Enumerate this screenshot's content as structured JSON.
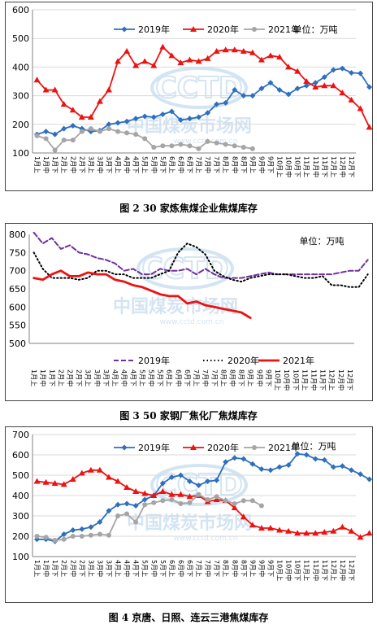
{
  "months": [
    "1月",
    "2月",
    "3月",
    "4月",
    "5月",
    "6月",
    "7月",
    "8月",
    "9月",
    "10月",
    "11月",
    "12月"
  ],
  "parts": [
    "上",
    "中",
    "下"
  ],
  "colors": {
    "blue": "#2e6fbe",
    "red": "#ee1111",
    "gray": "#a5a5a5",
    "purple": "#7030a0",
    "black": "#000000",
    "frame": "#444444"
  },
  "watermark": {
    "logo": "CCTD",
    "cn": "中国煤炭市场网",
    "url": "www.cctd.com.cn"
  },
  "captions": {
    "fig2": "图 2  30 家炼焦煤企业焦煤库存",
    "fig3": "图 3  50 家钢厂焦化厂焦煤库存",
    "fig4": "图 4  京唐、日照、连云三港焦煤库存"
  },
  "chart_data": [
    {
      "type": "line",
      "unit": "单位：万吨",
      "ylim": [
        100,
        600
      ],
      "yticks": [
        100,
        200,
        300,
        400,
        500,
        600
      ],
      "grid": true,
      "legend_position": "top",
      "series": [
        {
          "name": "2019年",
          "color": "#2e6fbe",
          "marker": "diamond",
          "values": [
            165,
            175,
            165,
            185,
            195,
            185,
            175,
            178,
            200,
            205,
            210,
            220,
            228,
            225,
            235,
            245,
            215,
            220,
            225,
            240,
            270,
            275,
            320,
            300,
            300,
            325,
            345,
            320,
            305,
            325,
            335,
            345,
            365,
            390,
            395,
            380,
            378,
            330
          ]
        },
        {
          "name": "2020年",
          "color": "#ee1111",
          "marker": "triangle",
          "values": [
            355,
            320,
            320,
            270,
            250,
            225,
            225,
            280,
            320,
            420,
            455,
            405,
            420,
            405,
            470,
            440,
            415,
            425,
            420,
            430,
            455,
            460,
            460,
            455,
            450,
            425,
            440,
            435,
            400,
            385,
            350,
            330,
            335,
            335,
            310,
            285,
            255,
            190
          ]
        },
        {
          "name": "2021年",
          "color": "#a5a5a5",
          "marker": "circle",
          "values": [
            160,
            150,
            110,
            145,
            145,
            175,
            185,
            175,
            185,
            175,
            170,
            165,
            150,
            120,
            125,
            125,
            130,
            125,
            115,
            140,
            135,
            130,
            125,
            120,
            115
          ]
        }
      ]
    },
    {
      "type": "line",
      "unit": "单位：万吨",
      "ylim": [
        500,
        800
      ],
      "yticks": [
        500,
        550,
        600,
        650,
        700,
        750,
        800
      ],
      "grid": false,
      "legend_position": "bottom",
      "series": [
        {
          "name": "2019年",
          "color": "#7030a0",
          "dash": "dashed",
          "values": [
            805,
            775,
            790,
            760,
            770,
            750,
            745,
            735,
            730,
            720,
            700,
            705,
            690,
            690,
            705,
            700,
            700,
            705,
            690,
            705,
            690,
            680,
            680,
            680,
            685,
            690,
            695,
            690,
            690,
            690,
            690,
            690,
            690,
            690,
            695,
            700,
            700,
            730
          ]
        },
        {
          "name": "2020年",
          "color": "#000000",
          "dash": "dotted",
          "values": [
            750,
            705,
            680,
            680,
            680,
            675,
            680,
            700,
            700,
            690,
            690,
            680,
            680,
            680,
            690,
            700,
            750,
            775,
            765,
            745,
            700,
            685,
            675,
            670,
            680,
            685,
            690,
            690,
            690,
            685,
            680,
            680,
            685,
            660,
            660,
            655,
            655,
            690
          ]
        },
        {
          "name": "2021年",
          "color": "#ee1111",
          "dash": "solid",
          "values": [
            680,
            675,
            690,
            700,
            685,
            685,
            695,
            690,
            690,
            675,
            670,
            660,
            655,
            645,
            635,
            630,
            630,
            610,
            615,
            605,
            600,
            595,
            590,
            585,
            570
          ]
        }
      ]
    },
    {
      "type": "line",
      "unit": "单位：万吨",
      "ylim": [
        100,
        700
      ],
      "yticks": [
        100,
        200,
        300,
        400,
        500,
        600,
        700
      ],
      "grid": true,
      "legend_position": "top",
      "series": [
        {
          "name": "2019年",
          "color": "#2e6fbe",
          "marker": "diamond",
          "values": [
            185,
            185,
            175,
            210,
            230,
            235,
            245,
            270,
            325,
            355,
            360,
            350,
            380,
            400,
            460,
            490,
            500,
            470,
            450,
            470,
            475,
            565,
            585,
            580,
            555,
            530,
            525,
            540,
            550,
            605,
            600,
            580,
            575,
            540,
            545,
            525,
            505,
            480
          ]
        },
        {
          "name": "2020年",
          "color": "#ee1111",
          "marker": "triangle",
          "values": [
            470,
            465,
            460,
            455,
            480,
            510,
            525,
            525,
            490,
            470,
            440,
            420,
            410,
            400,
            420,
            405,
            405,
            395,
            400,
            370,
            380,
            375,
            340,
            295,
            255,
            240,
            240,
            230,
            225,
            215,
            215,
            215,
            220,
            225,
            245,
            225,
            195,
            215
          ]
        },
        {
          "name": "2021年",
          "color": "#a5a5a5",
          "marker": "circle",
          "values": [
            200,
            195,
            180,
            185,
            200,
            200,
            205,
            210,
            205,
            300,
            310,
            270,
            355,
            365,
            375,
            380,
            360,
            365,
            405,
            380,
            395,
            375,
            360,
            375,
            375,
            350
          ]
        }
      ]
    }
  ]
}
